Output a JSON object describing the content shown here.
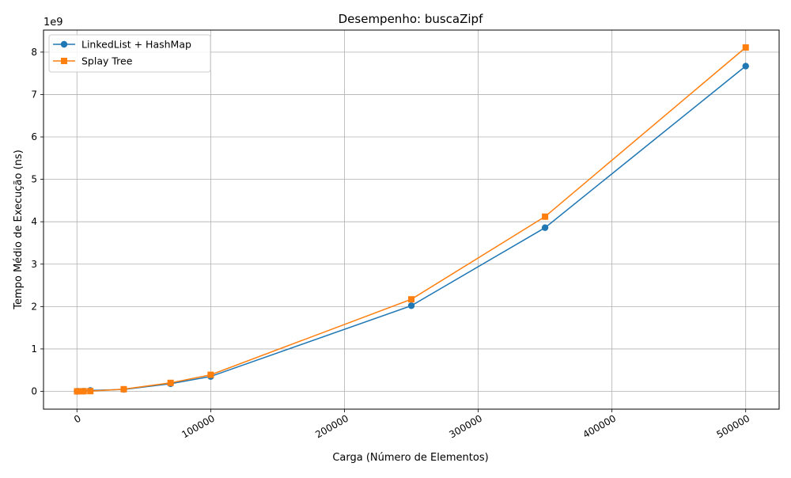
{
  "chart_data": {
    "type": "line",
    "title": "Desempenho: buscaZipf",
    "xlabel": "Carga (Número de Elementos)",
    "ylabel": "Tempo Médio de Execução (ns)",
    "y_offset_label": "1e9",
    "xlim": [
      -25000,
      525000
    ],
    "ylim": [
      -0.42,
      8.52
    ],
    "x_ticks": [
      0,
      100000,
      200000,
      300000,
      400000,
      500000
    ],
    "x_tick_labels": [
      "0",
      "100000",
      "200000",
      "300000",
      "400000",
      "500000"
    ],
    "x_tick_rotation": 30,
    "y_ticks": [
      0,
      1,
      2,
      3,
      4,
      5,
      6,
      7,
      8
    ],
    "y_tick_labels": [
      "0",
      "1",
      "2",
      "3",
      "4",
      "5",
      "6",
      "7",
      "8"
    ],
    "grid": true,
    "legend_position": "top-left",
    "series": [
      {
        "name": "LinkedList + HashMap",
        "color": "#1f77b4",
        "marker": "circle",
        "x": [
          100,
          1000,
          5000,
          10000,
          35000,
          70000,
          100000,
          250000,
          350000,
          500000
        ],
        "y": [
          0.0001,
          0.0005,
          0.004,
          0.02,
          0.045,
          0.18,
          0.35,
          2.02,
          3.86,
          7.67
        ]
      },
      {
        "name": "Splay Tree",
        "color": "#ff7f0e",
        "marker": "square",
        "x": [
          100,
          1000,
          5000,
          10000,
          35000,
          70000,
          100000,
          250000,
          350000,
          500000
        ],
        "y": [
          0.0001,
          0.0005,
          0.003,
          0.005,
          0.05,
          0.2,
          0.39,
          2.17,
          4.12,
          8.11
        ]
      }
    ]
  }
}
